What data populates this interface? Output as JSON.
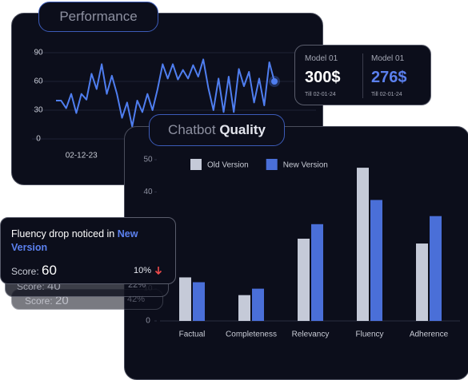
{
  "chart_data": [
    {
      "type": "line",
      "title": "Performance",
      "categories": [
        null,
        null,
        null,
        null,
        null,
        "02-12-23",
        null,
        null,
        null,
        null,
        null,
        null,
        null,
        null,
        null,
        null,
        null,
        null,
        null,
        null,
        null,
        null,
        null,
        null,
        null,
        null,
        null,
        null,
        null,
        null,
        null,
        null,
        null,
        null,
        null,
        null,
        null,
        null,
        null,
        null,
        null,
        null,
        null,
        null
      ],
      "values": [
        40,
        40,
        32,
        47,
        27,
        47,
        41,
        68,
        52,
        78,
        47,
        66,
        47,
        22,
        38,
        13,
        40,
        28,
        47,
        30,
        52,
        78,
        63,
        78,
        62,
        72,
        63,
        77,
        65,
        83,
        53,
        30,
        63,
        28,
        65,
        28,
        73,
        55,
        70,
        38,
        63,
        35,
        80,
        60
      ],
      "color": "#4f7ef0",
      "ylim": [
        0,
        90
      ],
      "yticks": [
        0,
        30,
        60,
        90
      ],
      "grid": true
    },
    {
      "type": "bar",
      "title": "Chatbot",
      "title_bold": "Quality",
      "categories": [
        "Factual",
        "Completeness",
        "Relevancy",
        "Fluency",
        "Adherence"
      ],
      "series": [
        {
          "name": "Old Version",
          "color": "#c5cad8",
          "values": [
            13.5,
            8,
            25.5,
            47.5,
            24
          ]
        },
        {
          "name": "New Version",
          "color": "#4a6fd8",
          "values": [
            12,
            10,
            30,
            37.5,
            32.5
          ]
        }
      ],
      "ylim": [
        0,
        50
      ],
      "yticks": [
        0,
        10,
        20,
        30,
        40,
        50
      ],
      "legend": "top"
    }
  ],
  "models": [
    {
      "name": "Model 01",
      "value": "300$",
      "till": "Till 02-01-24"
    },
    {
      "name": "Model 01",
      "value": "276$",
      "till": "Till 02-01-24"
    }
  ],
  "alerts": [
    {
      "text": "Fluency drop noticed in ",
      "highlight": "New Version",
      "score_label": "Score:",
      "score": "60",
      "change": "10%"
    },
    {
      "score_label": "Score:",
      "score": "40",
      "change": "22%"
    },
    {
      "score_label": "Score:",
      "score": "20",
      "change": "42%"
    }
  ]
}
